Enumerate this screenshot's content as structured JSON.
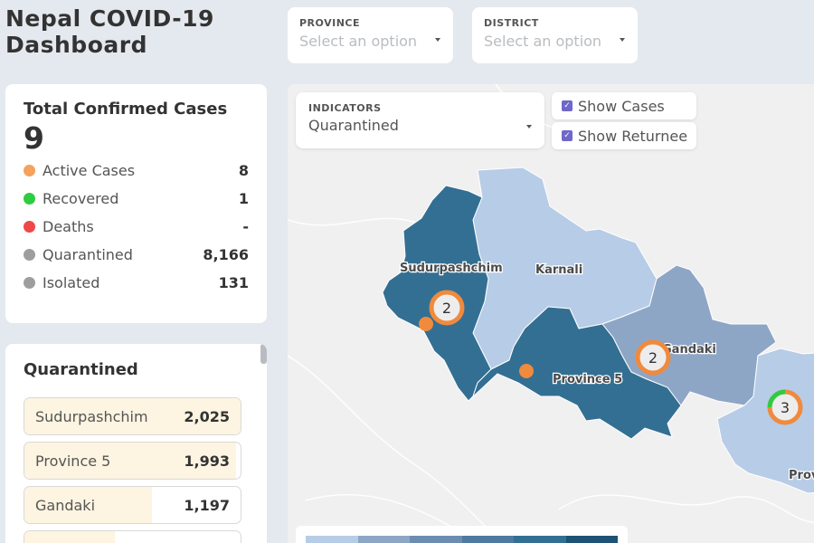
{
  "app": {
    "title": "Nepal COVID-19 Dashboard"
  },
  "filters": {
    "province": {
      "label": "PROVINCE",
      "placeholder": "Select an option"
    },
    "district": {
      "label": "DISTRICT",
      "placeholder": "Select an option"
    }
  },
  "summary": {
    "title": "Total Confirmed Cases",
    "total": "9",
    "stats": [
      {
        "name": "Active Cases",
        "value": "8",
        "color": "#f4a25c"
      },
      {
        "name": "Recovered",
        "value": "1",
        "color": "#2ecc40"
      },
      {
        "name": "Deaths",
        "value": "-",
        "color": "#f04848"
      },
      {
        "name": "Quarantined",
        "value": "8,166",
        "color": "#9e9e9e"
      },
      {
        "name": "Isolated",
        "value": "131",
        "color": "#9e9e9e"
      }
    ]
  },
  "quarantined": {
    "title": "Quarantined",
    "rows": [
      {
        "name": "Sudurpashchim",
        "value": "2,025",
        "fraction": 1.0
      },
      {
        "name": "Province 5",
        "value": "1,993",
        "fraction": 0.98
      },
      {
        "name": "Gandaki",
        "value": "1,197",
        "fraction": 0.59
      },
      {
        "name": "",
        "value": "",
        "fraction": 0.42
      }
    ]
  },
  "map": {
    "indicator": {
      "label": "INDICATORS",
      "value": "Quarantined"
    },
    "toggles": [
      {
        "label": "Show Cases",
        "checked": true
      },
      {
        "label": "Show Returnee",
        "checked": true
      }
    ],
    "region_labels": {
      "sudurpashchim": "Sudurpashchim",
      "karnali": "Karnali",
      "gandaki": "Gandaki",
      "province5": "Province 5",
      "province3_partial": "Prov"
    },
    "clusters": [
      {
        "count": "2"
      },
      {
        "count": "2"
      },
      {
        "count": "3"
      }
    ],
    "colors": {
      "sudurpashchim": "#336f93",
      "karnali": "#b7cce6",
      "gandaki": "#8ea6c6",
      "province5": "#336f93",
      "province3": "#b7cce6",
      "case_marker": "#f08a3c"
    },
    "legend_colors": [
      "#b7cce6",
      "#8ea6c6",
      "#6d8db0",
      "#4f7aa0",
      "#336f93",
      "#1d5275"
    ]
  }
}
